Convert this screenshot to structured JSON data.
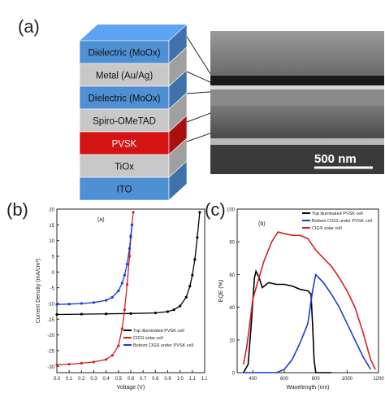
{
  "panel_a": {
    "letter": "(a)",
    "layers": [
      {
        "label": "Dielectric (MoOx)",
        "color": "#4f8fd4"
      },
      {
        "label": "Metal (Au/Ag)",
        "color": "#c8c8c8"
      },
      {
        "label": "Dielectric (MoOx)",
        "color": "#4f8fd4"
      },
      {
        "label": "Spiro-OMeTAD",
        "color": "#c8c8c8"
      },
      {
        "label": "PVSK",
        "color": "#d41414"
      },
      {
        "label": "TiOx",
        "color": "#c8c8c8"
      },
      {
        "label": "ITO",
        "color": "#4f8fd4"
      }
    ],
    "sem_scale": "500 nm"
  },
  "panel_b": {
    "letter": "(b)",
    "inner_label": "(a)",
    "chart_data": {
      "type": "line",
      "xlabel": "Voltage (V)",
      "ylabel": "Current Density (mA/cm²)",
      "xlim": [
        0,
        1.2
      ],
      "ylim": [
        -32,
        20
      ],
      "xticks": [
        "0.0",
        "0.1",
        "0.2",
        "0.3",
        "0.4",
        "0.5",
        "0.6",
        "0.7",
        "0.8",
        "0.9",
        "1.0",
        "1.1",
        "1.2"
      ],
      "yticks": [
        "20",
        "15",
        "10",
        "5",
        "0",
        "-5",
        "-10",
        "-15",
        "-20",
        "-25",
        "-30"
      ],
      "legend_position": "bottom-right",
      "series": [
        {
          "name": "Top illuminated PVSK cell",
          "color": "#000000",
          "x": [
            0,
            0.2,
            0.4,
            0.6,
            0.8,
            0.9,
            0.95,
            1.0,
            1.05,
            1.08,
            1.1,
            1.12,
            1.14,
            1.16
          ],
          "y": [
            -13.5,
            -13.4,
            -13.3,
            -13.2,
            -13.0,
            -12.6,
            -12.0,
            -10.8,
            -8.0,
            -4.5,
            -1.0,
            4.0,
            11.0,
            19.0
          ]
        },
        {
          "name": "CIGS solar cell",
          "color": "#d42020",
          "x": [
            0,
            0.1,
            0.2,
            0.3,
            0.4,
            0.45,
            0.5,
            0.53,
            0.55,
            0.57,
            0.59,
            0.6,
            0.61,
            0.62
          ],
          "y": [
            -29.5,
            -29.3,
            -29.0,
            -28.6,
            -27.8,
            -26.5,
            -23.5,
            -18.0,
            -12.0,
            -4.0,
            5.0,
            11.0,
            15.0,
            19.0
          ]
        },
        {
          "name": "Bottom CIGS under PVSK cell",
          "color": "#1a3ad6",
          "x": [
            0,
            0.1,
            0.2,
            0.3,
            0.4,
            0.45,
            0.5,
            0.53,
            0.55,
            0.57,
            0.59,
            0.6,
            0.61
          ],
          "y": [
            -10.3,
            -10.2,
            -10.0,
            -9.7,
            -9.0,
            -8.0,
            -6.0,
            -3.5,
            -1.0,
            2.5,
            7.5,
            11.5,
            15.0
          ]
        }
      ]
    }
  },
  "panel_c": {
    "letter": "(c)",
    "inner_label": "(b)",
    "chart_data": {
      "type": "line",
      "xlabel": "Wavelength (nm)",
      "ylabel": "EQE (%)",
      "xlim": [
        300,
        1200
      ],
      "ylim": [
        0,
        100
      ],
      "xticks": [
        "400",
        "600",
        "800",
        "1000",
        "1200"
      ],
      "yticks": [
        "0",
        "20",
        "40",
        "60",
        "80",
        "100"
      ],
      "legend_position": "top-right",
      "series": [
        {
          "name": "Top illuminated PVSK cell",
          "color": "#000000",
          "x": [
            340,
            370,
            390,
            410,
            420,
            440,
            460,
            500,
            550,
            600,
            650,
            700,
            750,
            770,
            780,
            790,
            800,
            820,
            850,
            900
          ],
          "y": [
            0,
            5,
            30,
            58,
            62,
            58,
            52,
            55,
            54,
            54,
            53,
            51,
            50,
            48,
            30,
            8,
            0,
            0,
            0,
            0
          ]
        },
        {
          "name": "Bottom CIGS under PVSK cell",
          "color": "#1a3ad6",
          "x": [
            340,
            400,
            500,
            550,
            600,
            650,
            700,
            750,
            780,
            800,
            820,
            850,
            900,
            950,
            1000,
            1050,
            1100,
            1150
          ],
          "y": [
            0,
            0,
            0,
            0,
            2,
            8,
            18,
            30,
            50,
            60,
            58,
            55,
            48,
            40,
            30,
            20,
            10,
            2
          ]
        },
        {
          "name": "CIGS solar cell",
          "color": "#d42020",
          "x": [
            340,
            360,
            380,
            400,
            430,
            470,
            520,
            560,
            600,
            650,
            700,
            750,
            800,
            850,
            900,
            950,
            1000,
            1050,
            1100,
            1150,
            1180
          ],
          "y": [
            5,
            15,
            30,
            45,
            55,
            68,
            80,
            86,
            85,
            84,
            84,
            82,
            75,
            70,
            65,
            58,
            50,
            40,
            25,
            8,
            2
          ]
        }
      ]
    }
  }
}
